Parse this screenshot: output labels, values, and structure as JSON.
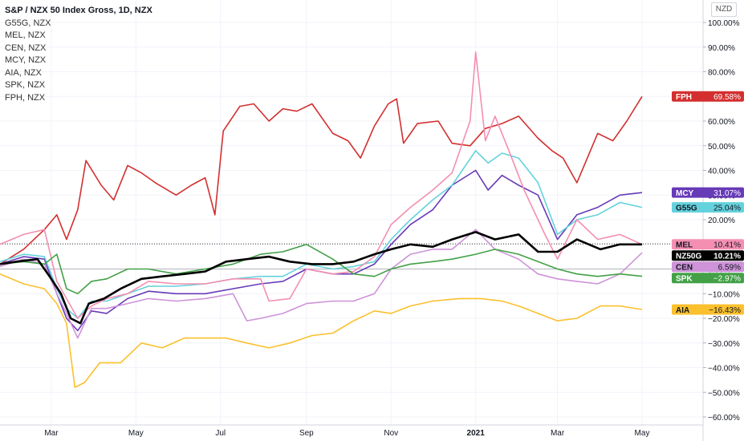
{
  "legend": {
    "title": "S&P / NZX 50 Index Gross, 1D, NZX",
    "symbols": [
      "G55G, NZX",
      "MEL, NZX",
      "CEN, NZX",
      "MCY, NZX",
      "AIA, NZX",
      "SPK, NZX",
      "FPH, NZX"
    ]
  },
  "currency_button": "NZD",
  "chart_data": {
    "type": "line",
    "title": "S&P / NZX 50 Index Gross, 1D, NZX",
    "x_ticks": [
      "Mar",
      "May",
      "Jul",
      "Sep",
      "Nov",
      "2021",
      "Mar",
      "May"
    ],
    "y_ticks": [
      "100.00%",
      "90.00%",
      "80.00%",
      "70.00%",
      "60.00%",
      "50.00%",
      "40.00%",
      "30.00%",
      "20.00%",
      "10.00%",
      "0.00%",
      "−10.00%",
      "−20.00%",
      "−30.00%",
      "−40.00%",
      "−50.00%",
      "−60.00%"
    ],
    "ylim": [
      -62,
      103
    ],
    "x_range": [
      "2020-01-24",
      "2021-05-01"
    ],
    "x_tick_dates": [
      "2020-03-01",
      "2020-05-01",
      "2020-07-01",
      "2020-09-01",
      "2020-11-01",
      "2021-01-01",
      "2021-03-01",
      "2021-05-01"
    ],
    "reference_level": 10.21,
    "series": [
      {
        "name": "FPH",
        "color": "#d32f2f",
        "label": "69.58%",
        "x": [
          "2020-01-24",
          "2020-02-10",
          "2020-02-25",
          "2020-03-05",
          "2020-03-12",
          "2020-03-20",
          "2020-03-26",
          "2020-04-06",
          "2020-04-15",
          "2020-04-25",
          "2020-05-05",
          "2020-05-15",
          "2020-05-30",
          "2020-06-10",
          "2020-06-20",
          "2020-06-27",
          "2020-07-03",
          "2020-07-15",
          "2020-07-25",
          "2020-08-05",
          "2020-08-15",
          "2020-08-25",
          "2020-09-05",
          "2020-09-20",
          "2020-10-01",
          "2020-10-10",
          "2020-10-20",
          "2020-10-30",
          "2020-11-05",
          "2020-11-10",
          "2020-11-20",
          "2020-12-05",
          "2020-12-15",
          "2020-12-28",
          "2021-01-08",
          "2021-01-20",
          "2021-02-01",
          "2021-02-15",
          "2021-02-25",
          "2021-03-05",
          "2021-03-15",
          "2021-03-30",
          "2021-04-10",
          "2021-04-20",
          "2021-05-01"
        ],
        "y": [
          2,
          8,
          16,
          22,
          12,
          24,
          44,
          34,
          28,
          42,
          39,
          35,
          30,
          34,
          37,
          22,
          56,
          66,
          67,
          60,
          65,
          64,
          67,
          55,
          52,
          45,
          58,
          67,
          69,
          51,
          59,
          60,
          51,
          50,
          57,
          59,
          62,
          53,
          48,
          45,
          35,
          55,
          52,
          60,
          70
        ]
      },
      {
        "name": "MCY",
        "color": "#673ab7",
        "label": "31.07%",
        "x": [
          "2020-01-24",
          "2020-02-10",
          "2020-02-25",
          "2020-03-05",
          "2020-03-12",
          "2020-03-20",
          "2020-03-30",
          "2020-04-10",
          "2020-04-25",
          "2020-05-10",
          "2020-05-30",
          "2020-06-20",
          "2020-07-10",
          "2020-07-30",
          "2020-08-15",
          "2020-09-01",
          "2020-09-20",
          "2020-10-05",
          "2020-10-20",
          "2020-11-01",
          "2020-11-15",
          "2020-12-01",
          "2020-12-15",
          "2021-01-01",
          "2021-01-10",
          "2021-01-20",
          "2021-02-01",
          "2021-02-15",
          "2021-03-01",
          "2021-03-15",
          "2021-03-30",
          "2021-04-15",
          "2021-05-01"
        ],
        "y": [
          2,
          5,
          4,
          -10,
          -20,
          -25,
          -17,
          -18,
          -12,
          -9,
          -10,
          -10,
          -8,
          -6,
          -5,
          0,
          -2,
          -2,
          2,
          10,
          18,
          24,
          34,
          40,
          32,
          38,
          34,
          30,
          12,
          22,
          25,
          30,
          31
        ]
      },
      {
        "name": "G55G",
        "color": "#64d2dc",
        "label": "25.04%",
        "x": [
          "2020-01-24",
          "2020-02-10",
          "2020-02-25",
          "2020-03-05",
          "2020-03-12",
          "2020-03-20",
          "2020-03-30",
          "2020-04-10",
          "2020-04-25",
          "2020-05-10",
          "2020-05-30",
          "2020-06-20",
          "2020-07-10",
          "2020-07-30",
          "2020-08-15",
          "2020-09-01",
          "2020-09-20",
          "2020-10-05",
          "2020-10-20",
          "2020-11-01",
          "2020-11-15",
          "2020-12-01",
          "2020-12-15",
          "2021-01-01",
          "2021-01-10",
          "2021-01-20",
          "2021-02-01",
          "2021-02-15",
          "2021-03-01",
          "2021-03-15",
          "2021-03-30",
          "2021-04-15",
          "2021-05-01"
        ],
        "y": [
          3,
          6,
          5,
          -8,
          -16,
          -20,
          -13,
          -13,
          -10,
          -7,
          -7,
          -6,
          -4,
          -3,
          -3,
          2,
          0,
          1,
          3,
          12,
          20,
          28,
          34,
          48,
          43,
          47,
          45,
          35,
          14,
          20,
          22,
          27,
          25
        ]
      },
      {
        "name": "MEL",
        "color": "#f48fb1",
        "label": "10.41%",
        "x": [
          "2020-01-24",
          "2020-02-10",
          "2020-02-25",
          "2020-03-05",
          "2020-03-12",
          "2020-03-20",
          "2020-03-30",
          "2020-04-10",
          "2020-04-25",
          "2020-05-10",
          "2020-05-30",
          "2020-06-20",
          "2020-07-10",
          "2020-07-30",
          "2020-08-05",
          "2020-08-20",
          "2020-09-01",
          "2020-09-20",
          "2020-10-05",
          "2020-10-20",
          "2020-11-01",
          "2020-11-15",
          "2020-12-01",
          "2020-12-15",
          "2020-12-28",
          "2021-01-01",
          "2021-01-08",
          "2021-01-15",
          "2021-01-25",
          "2021-02-05",
          "2021-02-20",
          "2021-03-01",
          "2021-03-15",
          "2021-03-30",
          "2021-04-15",
          "2021-05-01"
        ],
        "y": [
          10,
          14,
          16,
          -5,
          -12,
          -20,
          -15,
          -12,
          -10,
          -5,
          -6,
          -6,
          -4,
          -4,
          -13,
          -12,
          0,
          -2,
          -1,
          5,
          18,
          25,
          32,
          39,
          60,
          88,
          52,
          62,
          48,
          32,
          14,
          4,
          20,
          12,
          14,
          10
        ]
      },
      {
        "name": "NZ50G",
        "color": "#000000",
        "label": "10.21%",
        "bold": true,
        "x": [
          "2020-01-24",
          "2020-02-05",
          "2020-02-20",
          "2020-03-01",
          "2020-03-08",
          "2020-03-15",
          "2020-03-22",
          "2020-03-28",
          "2020-04-08",
          "2020-04-20",
          "2020-05-05",
          "2020-05-20",
          "2020-06-05",
          "2020-06-20",
          "2020-07-05",
          "2020-07-20",
          "2020-08-05",
          "2020-08-20",
          "2020-09-05",
          "2020-09-20",
          "2020-10-05",
          "2020-10-20",
          "2020-11-01",
          "2020-11-15",
          "2020-12-01",
          "2020-12-15",
          "2021-01-01",
          "2021-01-15",
          "2021-02-01",
          "2021-02-15",
          "2021-03-01",
          "2021-03-15",
          "2021-04-01",
          "2021-04-15",
          "2021-05-01"
        ],
        "y": [
          2,
          3,
          4,
          -4,
          -10,
          -20,
          -22,
          -14,
          -12,
          -8,
          -4,
          -3,
          -2,
          -1,
          3,
          4,
          5,
          3,
          2,
          2,
          3,
          6,
          8,
          10,
          9,
          12,
          15,
          12,
          14,
          7,
          7,
          12,
          8,
          10,
          10
        ]
      },
      {
        "name": "CEN",
        "color": "#ce93d8",
        "label": "6.59%",
        "x": [
          "2020-01-24",
          "2020-02-10",
          "2020-02-25",
          "2020-03-05",
          "2020-03-12",
          "2020-03-20",
          "2020-03-30",
          "2020-04-10",
          "2020-04-25",
          "2020-05-10",
          "2020-05-30",
          "2020-06-20",
          "2020-07-10",
          "2020-07-20",
          "2020-07-30",
          "2020-08-15",
          "2020-09-01",
          "2020-09-20",
          "2020-10-05",
          "2020-10-20",
          "2020-11-01",
          "2020-11-15",
          "2020-12-01",
          "2020-12-15",
          "2021-01-01",
          "2021-01-15",
          "2021-02-01",
          "2021-02-15",
          "2021-03-01",
          "2021-03-15",
          "2021-03-30",
          "2021-04-15",
          "2021-05-01"
        ],
        "y": [
          1,
          4,
          2,
          -10,
          -18,
          -28,
          -16,
          -16,
          -14,
          -12,
          -13,
          -12,
          -10,
          -21,
          -20,
          -18,
          -14,
          -13,
          -13,
          -10,
          0,
          6,
          8,
          8,
          16,
          8,
          4,
          -2,
          -4,
          -5,
          -6,
          -2,
          6.59
        ]
      },
      {
        "name": "SPK",
        "color": "#43a047",
        "label": "−2.97%",
        "x": [
          "2020-01-24",
          "2020-02-10",
          "2020-02-25",
          "2020-03-05",
          "2020-03-12",
          "2020-03-20",
          "2020-03-30",
          "2020-04-10",
          "2020-04-25",
          "2020-05-10",
          "2020-05-30",
          "2020-06-20",
          "2020-07-10",
          "2020-07-30",
          "2020-08-15",
          "2020-09-01",
          "2020-09-20",
          "2020-10-05",
          "2020-10-20",
          "2020-11-01",
          "2020-11-15",
          "2020-12-01",
          "2020-12-15",
          "2021-01-01",
          "2021-01-15",
          "2021-02-01",
          "2021-02-15",
          "2021-03-01",
          "2021-03-15",
          "2021-03-30",
          "2021-04-15",
          "2021-05-01"
        ],
        "y": [
          2,
          3,
          2,
          6,
          -8,
          -10,
          -5,
          -4,
          0,
          0,
          -2,
          0,
          2,
          6,
          7,
          10,
          4,
          -2,
          -3,
          0,
          2,
          3,
          4,
          6,
          8,
          6,
          3,
          0,
          -2,
          -3,
          -2,
          -2.97
        ]
      },
      {
        "name": "AIA",
        "color": "#fbc02d",
        "label": "−16.43%",
        "x": [
          "2020-01-24",
          "2020-02-10",
          "2020-02-25",
          "2020-03-05",
          "2020-03-12",
          "2020-03-18",
          "2020-03-25",
          "2020-04-05",
          "2020-04-20",
          "2020-05-05",
          "2020-05-20",
          "2020-06-05",
          "2020-06-20",
          "2020-07-05",
          "2020-07-20",
          "2020-08-05",
          "2020-08-20",
          "2020-09-05",
          "2020-09-20",
          "2020-10-05",
          "2020-10-20",
          "2020-11-01",
          "2020-11-15",
          "2020-12-01",
          "2020-12-20",
          "2021-01-05",
          "2021-01-20",
          "2021-02-01",
          "2021-02-15",
          "2021-03-01",
          "2021-03-15",
          "2021-04-01",
          "2021-04-15",
          "2021-05-01"
        ],
        "y": [
          -2,
          -6,
          -8,
          -14,
          -22,
          -48,
          -46,
          -38,
          -38,
          -30,
          -32,
          -28,
          -28,
          -28,
          -30,
          -32,
          -30,
          -27,
          -26,
          -21,
          -17,
          -18,
          -15,
          -13,
          -12,
          -12,
          -13,
          -15,
          -18,
          -21,
          -20,
          -15,
          -15,
          -16.43
        ]
      }
    ]
  }
}
